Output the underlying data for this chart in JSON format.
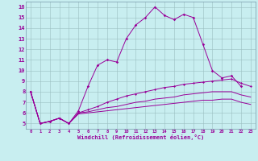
{
  "xlabel": "Windchill (Refroidissement éolien,°C)",
  "x": [
    0,
    1,
    2,
    3,
    4,
    5,
    6,
    7,
    8,
    9,
    10,
    11,
    12,
    13,
    14,
    15,
    16,
    17,
    18,
    19,
    20,
    21,
    22,
    23
  ],
  "line1": [
    8.0,
    5.0,
    5.2,
    5.5,
    5.0,
    6.2,
    8.5,
    10.5,
    11.0,
    10.8,
    13.0,
    14.3,
    15.0,
    16.0,
    15.2,
    14.8,
    15.3,
    15.0,
    12.5,
    10.0,
    9.3,
    9.5,
    8.5,
    null
  ],
  "line2": [
    8.0,
    5.0,
    5.2,
    5.5,
    5.0,
    6.0,
    6.3,
    6.6,
    7.0,
    7.3,
    7.6,
    7.8,
    8.0,
    8.2,
    8.4,
    8.5,
    8.7,
    8.8,
    8.9,
    9.0,
    9.1,
    9.2,
    8.8,
    8.5
  ],
  "line3": [
    8.0,
    5.0,
    5.2,
    5.5,
    5.0,
    6.0,
    6.1,
    6.3,
    6.5,
    6.6,
    6.8,
    7.0,
    7.1,
    7.3,
    7.4,
    7.5,
    7.7,
    7.8,
    7.9,
    8.0,
    8.0,
    8.0,
    7.7,
    7.5
  ],
  "line4": [
    8.0,
    5.0,
    5.2,
    5.5,
    5.0,
    5.9,
    6.0,
    6.1,
    6.2,
    6.3,
    6.4,
    6.5,
    6.6,
    6.7,
    6.8,
    6.9,
    7.0,
    7.1,
    7.2,
    7.2,
    7.3,
    7.3,
    7.0,
    6.8
  ],
  "line_color": "#990099",
  "bg_color": "#c8eef0",
  "grid_color": "#9bbfc0",
  "ylim": [
    4.5,
    16.5
  ],
  "xlim": [
    -0.5,
    23.5
  ],
  "yticks": [
    5,
    6,
    7,
    8,
    9,
    10,
    11,
    12,
    13,
    14,
    15,
    16
  ],
  "xticks": [
    0,
    1,
    2,
    3,
    4,
    5,
    6,
    7,
    8,
    9,
    10,
    11,
    12,
    13,
    14,
    15,
    16,
    17,
    18,
    19,
    20,
    21,
    22,
    23
  ]
}
